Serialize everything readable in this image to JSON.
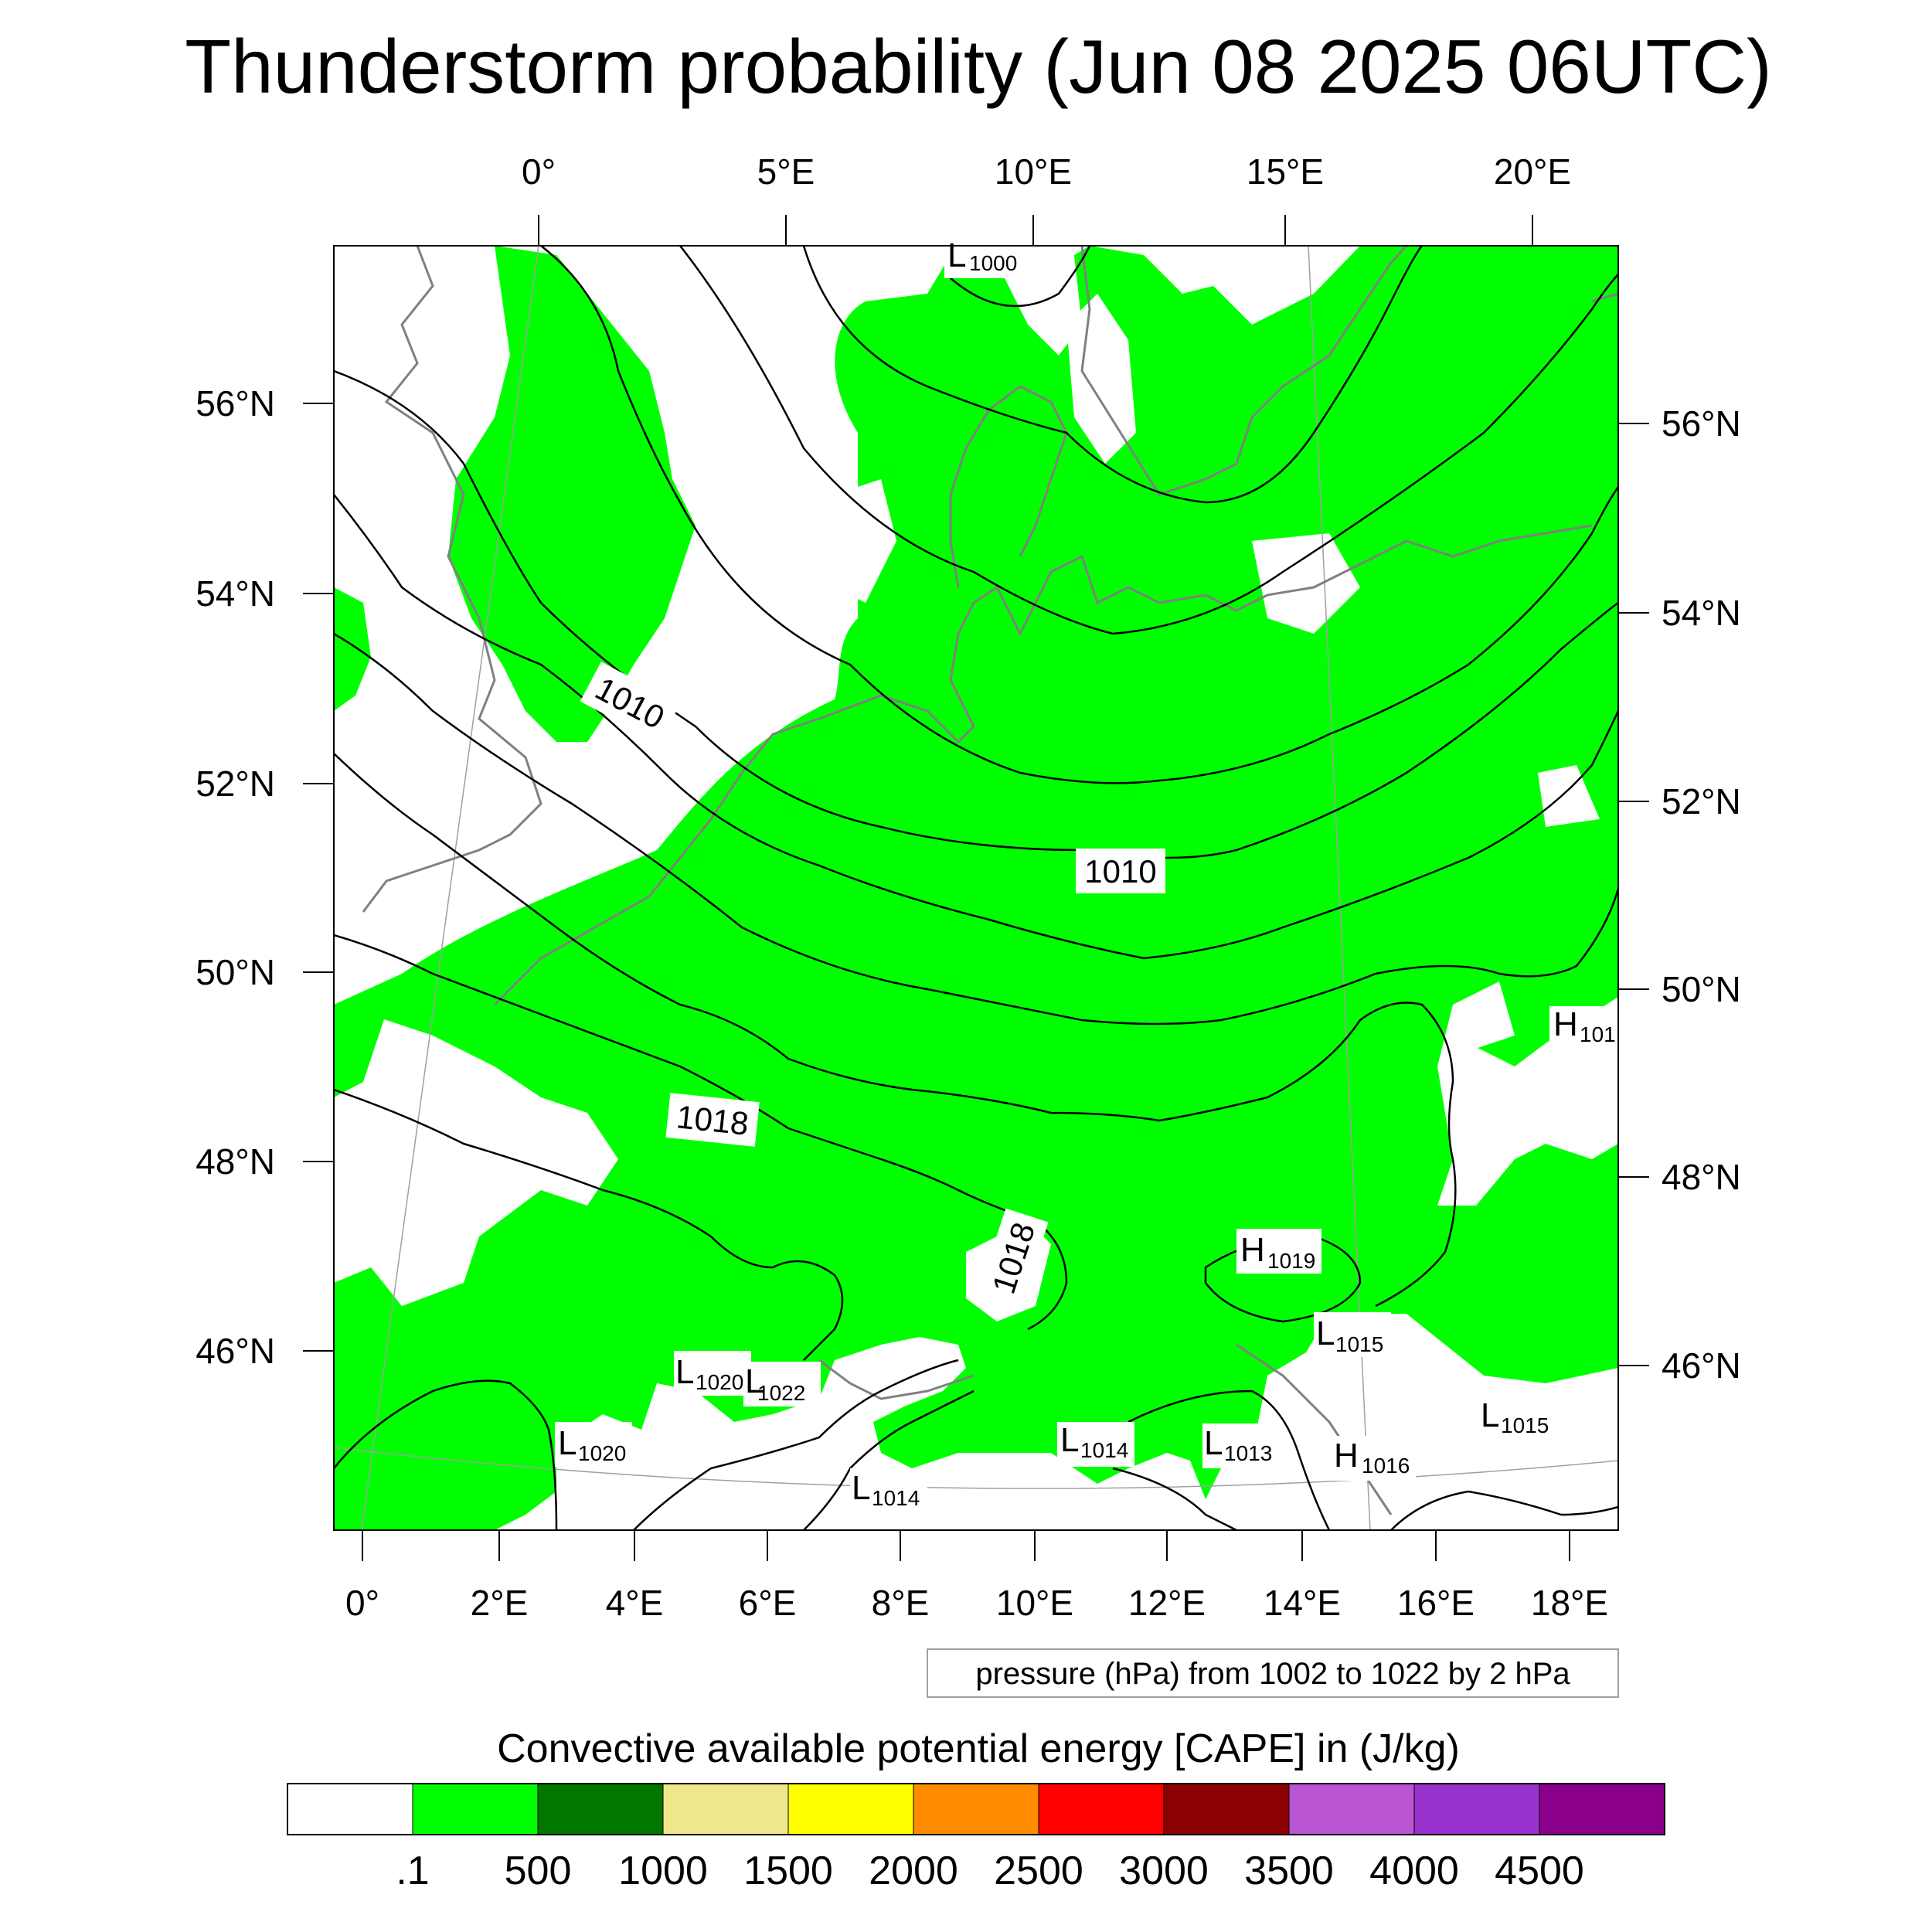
{
  "title": "Thunderstorm probability (Jun 08 2025 06UTC)",
  "top_lon_labels": [
    "0°",
    "5°E",
    "10°E",
    "15°E",
    "20°E"
  ],
  "left_lat_labels": [
    "56°N",
    "54°N",
    "52°N",
    "50°N",
    "48°N",
    "46°N"
  ],
  "right_lat_labels": [
    "56°N",
    "54°N",
    "52°N",
    "50°N",
    "48°N",
    "46°N"
  ],
  "bottom_lon_labels": [
    "0°",
    "2°E",
    "4°E",
    "6°E",
    "8°E",
    "10°E",
    "12°E",
    "14°E",
    "16°E",
    "18°E"
  ],
  "isobar_labels": [
    "1010",
    "1010",
    "1018",
    "1018"
  ],
  "pressure_centers": [
    {
      "letter": "L",
      "value": "1000"
    },
    {
      "letter": "H",
      "value": "101"
    },
    {
      "letter": "H",
      "value": "1019"
    },
    {
      "letter": "L",
      "value": "1015"
    },
    {
      "letter": "L",
      "value": "1020"
    },
    {
      "letter": "L",
      "value": "1022"
    },
    {
      "letter": "L",
      "value": "1020"
    },
    {
      "letter": "L",
      "value": "1014"
    },
    {
      "letter": "L",
      "value": "1013"
    },
    {
      "letter": "H",
      "value": "1016"
    },
    {
      "letter": "L",
      "value": "1015"
    },
    {
      "letter": "L",
      "value": "1014"
    }
  ],
  "contour_caption": "pressure (hPa) from 1002 to 1022 by 2 hPa",
  "colorbar": {
    "title": "Convective available potential energy [CAPE] in (J/kg)",
    "colors": [
      "#ffffff",
      "#00ff00",
      "#007800",
      "#f0e68c",
      "#ffff00",
      "#ff8c00",
      "#ff0000",
      "#8b0000",
      "#ba55d3",
      "#9932cc",
      "#8b008b"
    ],
    "labels": [
      ".1",
      "500",
      "1000",
      "1500",
      "2000",
      "2500",
      "3000",
      "3500",
      "4000",
      "4500"
    ]
  },
  "colors": {
    "cape_fill": "#00ff00",
    "coastline": "#808080",
    "isobar": "#000000"
  }
}
